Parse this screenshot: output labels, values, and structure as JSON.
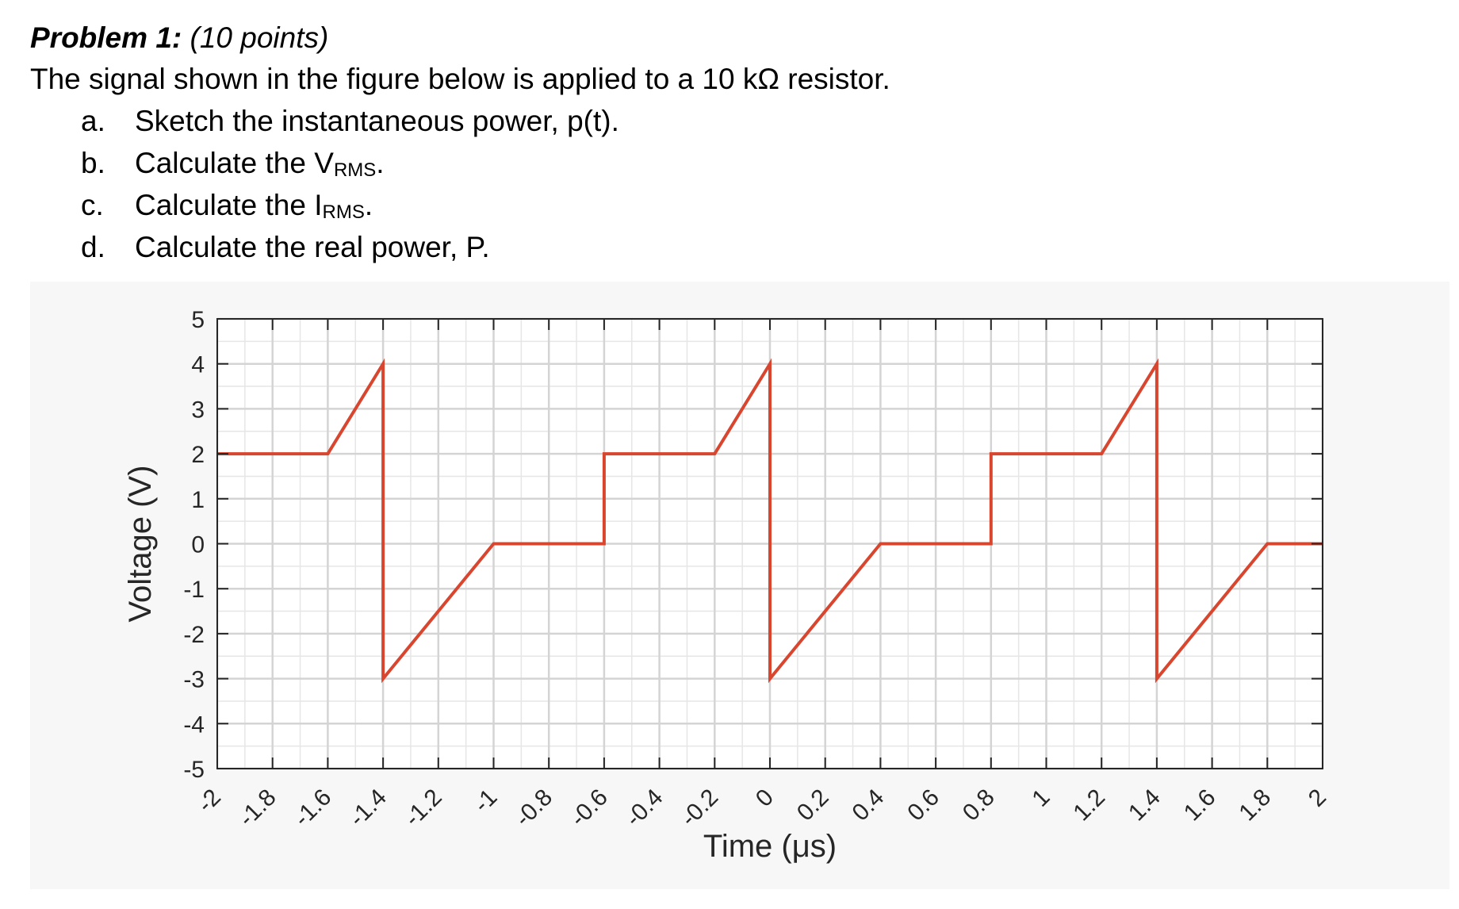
{
  "problem": {
    "heading": "Problem 1:",
    "points": "(10 points)",
    "statement": "The signal shown in the figure below is applied to a 10 kΩ resistor.",
    "items": [
      {
        "letter": "a.",
        "text": "Sketch the instantaneous power, p(t).",
        "sub": "",
        "after": ""
      },
      {
        "letter": "b.",
        "text": "Calculate the V",
        "sub": "RMS",
        "after": "."
      },
      {
        "letter": "c.",
        "text": "Calculate the I",
        "sub": "RMS",
        "after": "."
      },
      {
        "letter": "d.",
        "text": "Calculate the real power, P.",
        "sub": "",
        "after": ""
      }
    ]
  },
  "chart_data": {
    "type": "line",
    "title": "",
    "xlabel": "Time (μs)",
    "ylabel": "Voltage (V)",
    "xlim": [
      -2,
      2
    ],
    "ylim": [
      -5,
      5
    ],
    "xticks": [
      -2,
      -1.8,
      -1.6,
      -1.4,
      -1.2,
      -1,
      -0.8,
      -0.6,
      -0.4,
      -0.2,
      0,
      0.2,
      0.4,
      0.6,
      0.8,
      1,
      1.2,
      1.4,
      1.6,
      1.8,
      2
    ],
    "xtick_labels": [
      "-2",
      "-1.8",
      "-1.6",
      "-1.4",
      "-1.2",
      "-1",
      "-0.8",
      "-0.6",
      "-0.4",
      "-0.2",
      "0",
      "0.2",
      "0.4",
      "0.6",
      "0.8",
      "1",
      "1.2",
      "1.4",
      "1.6",
      "1.8",
      "2"
    ],
    "yticks": [
      5,
      4,
      3,
      2,
      1,
      0,
      -1,
      -2,
      -3,
      -4,
      -5
    ],
    "ytick_labels": [
      "5",
      "4",
      "3",
      "2",
      "1",
      "0",
      "-1",
      "-2",
      "-3",
      "-4",
      "-5"
    ],
    "grid": true,
    "minor_grid": true,
    "line_color": "#d9462f",
    "series": [
      {
        "x": [
          -2,
          -1.6,
          -1.4,
          -1.4,
          -1.0,
          -0.6,
          -0.6,
          -0.2,
          0,
          0,
          0.4,
          0.8,
          0.8,
          1.2,
          1.4,
          1.4,
          1.8,
          2
        ],
        "y": [
          2,
          2,
          4,
          -3,
          0,
          0,
          2,
          2,
          4,
          -3,
          0,
          0,
          2,
          2,
          4,
          -3,
          0,
          0
        ]
      }
    ]
  }
}
